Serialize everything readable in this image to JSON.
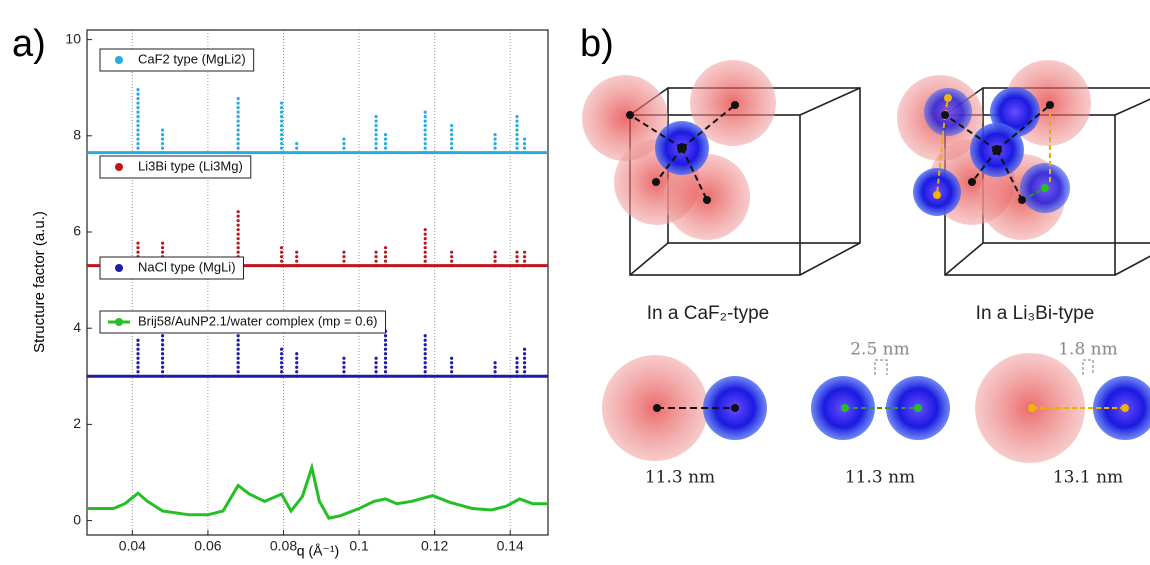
{
  "chart_data": {
    "type": "stem",
    "panel_label": "a)",
    "xlabel": "q (Å⁻¹)",
    "ylabel": "Structure factor (a.u.)",
    "xlim": [
      0.028,
      0.15
    ],
    "ylim": [
      -0.3,
      10.2
    ],
    "xticks": [
      0.04,
      0.06,
      0.08,
      0.1,
      0.12,
      0.14
    ],
    "yticks": [
      0,
      2,
      4,
      6,
      8,
      10
    ],
    "grid": true,
    "series": [
      {
        "name": "CaF2 type (MgLi2)",
        "color": "#29abe2",
        "style": "stem",
        "baseline": 7.65,
        "x": [
          0.0415,
          0.048,
          0.068,
          0.0795,
          0.0835,
          0.096,
          0.1045,
          0.107,
          0.1175,
          0.1245,
          0.136,
          0.1418,
          0.1438
        ],
        "values": [
          9.0,
          8.2,
          8.8,
          8.75,
          7.9,
          8.0,
          8.4,
          8.05,
          8.5,
          8.3,
          8.05,
          8.45,
          7.95
        ]
      },
      {
        "name": "Li3Bi type (Li3Mg)",
        "color": "#c0141c",
        "style": "stem",
        "baseline": 5.3,
        "x": [
          0.0415,
          0.048,
          0.068,
          0.0795,
          0.0835,
          0.096,
          0.1045,
          0.107,
          0.1175,
          0.1245,
          0.136,
          0.1418,
          0.1438
        ],
        "values": [
          5.85,
          5.8,
          6.45,
          5.75,
          5.6,
          5.6,
          5.6,
          5.75,
          6.05,
          5.6,
          5.6,
          5.6,
          5.65
        ]
      },
      {
        "name": "NaCl type (MgLi)",
        "color": "#1c1ca8",
        "style": "stem",
        "baseline": 3.0,
        "x": [
          0.0415,
          0.048,
          0.068,
          0.0795,
          0.0835,
          0.096,
          0.1045,
          0.107,
          0.1175,
          0.1245,
          0.136,
          0.1418,
          0.1438
        ],
        "values": [
          3.8,
          4.2,
          4.25,
          3.65,
          3.55,
          3.4,
          3.45,
          4.0,
          3.85,
          3.4,
          3.35,
          3.4,
          3.65
        ]
      },
      {
        "name": "Brij58/AuNP2.1/water complex (mp = 0.6)",
        "color": "#22c022",
        "style": "line",
        "x": [
          0.028,
          0.035,
          0.038,
          0.0415,
          0.044,
          0.048,
          0.055,
          0.06,
          0.064,
          0.068,
          0.071,
          0.075,
          0.0795,
          0.082,
          0.085,
          0.0875,
          0.0895,
          0.092,
          0.095,
          0.1,
          0.104,
          0.107,
          0.11,
          0.114,
          0.1195,
          0.124,
          0.13,
          0.135,
          0.139,
          0.1425,
          0.146,
          0.15
        ],
        "values": [
          0.25,
          0.25,
          0.35,
          0.57,
          0.4,
          0.2,
          0.12,
          0.12,
          0.2,
          0.73,
          0.55,
          0.4,
          0.55,
          0.2,
          0.5,
          1.1,
          0.4,
          0.05,
          0.1,
          0.25,
          0.4,
          0.45,
          0.35,
          0.4,
          0.52,
          0.38,
          0.25,
          0.22,
          0.3,
          0.45,
          0.35,
          0.35
        ]
      }
    ]
  },
  "diagram": {
    "panel_label": "b)",
    "captions": [
      "In a CaF₂-type",
      "In a Li₃Bi-type"
    ],
    "distances": [
      "11.3 nm",
      "11.3 nm",
      "13.1 nm"
    ],
    "gaps": [
      "2.5 nm",
      "1.8 nm"
    ]
  }
}
